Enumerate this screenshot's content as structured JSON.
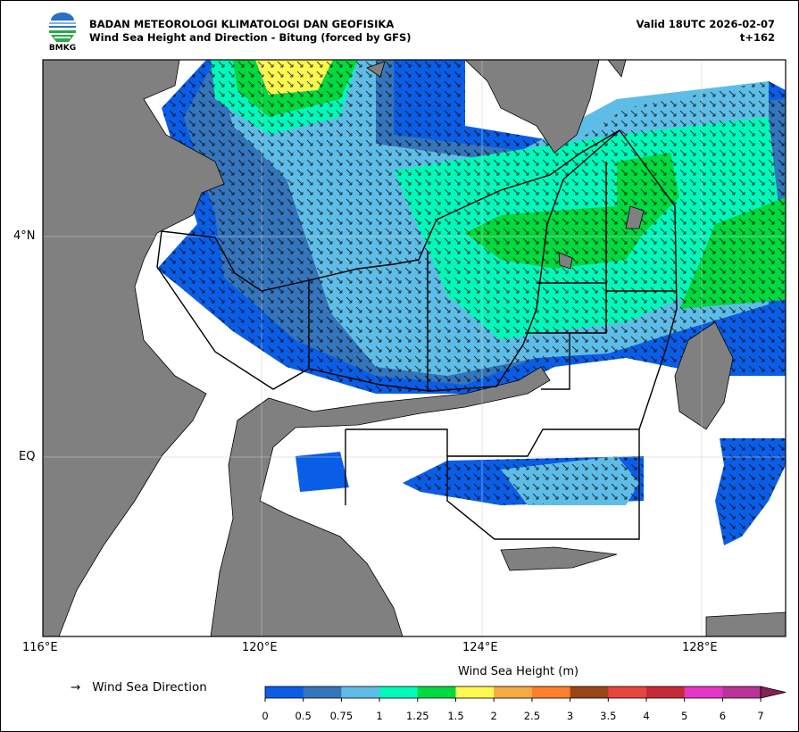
{
  "header": {
    "org": "BADAN METEOROLOGI KLIMATOLOGI DAN GEOFISIKA",
    "subtitle": "Wind Sea Height and Direction - Bitung (forced by GFS)",
    "valid": "Valid 18UTC 2026-02-07",
    "step": "t+162",
    "logo_text": "BMKG"
  },
  "map": {
    "lon_ticks": [
      "116°E",
      "120°E",
      "124°E",
      "128°E"
    ],
    "lat_ticks": [
      "4°N",
      "EQ"
    ],
    "land_color": "#808080",
    "sea_color": "#ffffff"
  },
  "legend": {
    "arrow": "→",
    "label": "Wind Sea Direction"
  },
  "colorbar": {
    "title": "Wind Sea Height (m)",
    "labels": [
      "0",
      "0.5",
      "0.75",
      "1",
      "1.25",
      "1.5",
      "2",
      "2.5",
      "3",
      "3.5",
      "4",
      "5",
      "6",
      "7"
    ],
    "colors": [
      "#0a5ee6",
      "#3575bb",
      "#5ebde6",
      "#00f9bb",
      "#00d93f",
      "#fff94f",
      "#f6aa42",
      "#ff7e2b",
      "#9b4415",
      "#e7463a",
      "#c62a35",
      "#e535c4",
      "#b93399",
      "#7e2456"
    ],
    "extend": "max"
  }
}
